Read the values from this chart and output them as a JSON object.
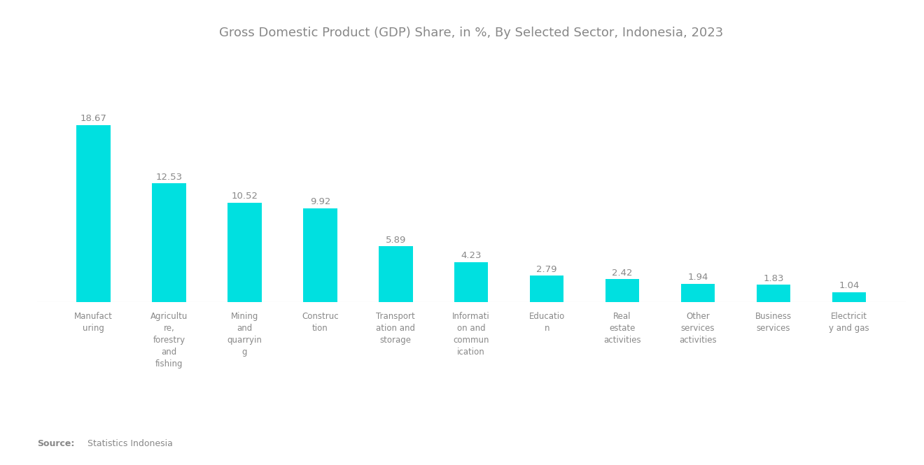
{
  "title": "Gross Domestic Product (GDP) Share, in %, By Selected Sector, Indonesia, 2023",
  "categories": [
    "Manufact\nuring",
    "Agricultu\nre,\nforestry\nand\nfishing",
    "Mining\nand\nquarryin\ng",
    "Construc\ntion",
    "Transport\nation and\nstorage",
    "Informati\non and\ncommun\nication",
    "Educatio\nn",
    "Real\nestate\nactivities",
    "Other\nservices\nactivities",
    "Business\nservices",
    "Electricit\ny and gas"
  ],
  "values": [
    18.67,
    12.53,
    10.52,
    9.92,
    5.89,
    4.23,
    2.79,
    2.42,
    1.94,
    1.83,
    1.04
  ],
  "bar_color": "#00E0E0",
  "value_color": "#888888",
  "label_color": "#888888",
  "title_color": "#888888",
  "source_bold": "Source:",
  "source_text": "Statistics Indonesia",
  "background_color": "#ffffff",
  "ylim": [
    0,
    26
  ],
  "title_fontsize": 13,
  "label_fontsize": 8.5,
  "value_fontsize": 9.5,
  "bar_width": 0.45
}
